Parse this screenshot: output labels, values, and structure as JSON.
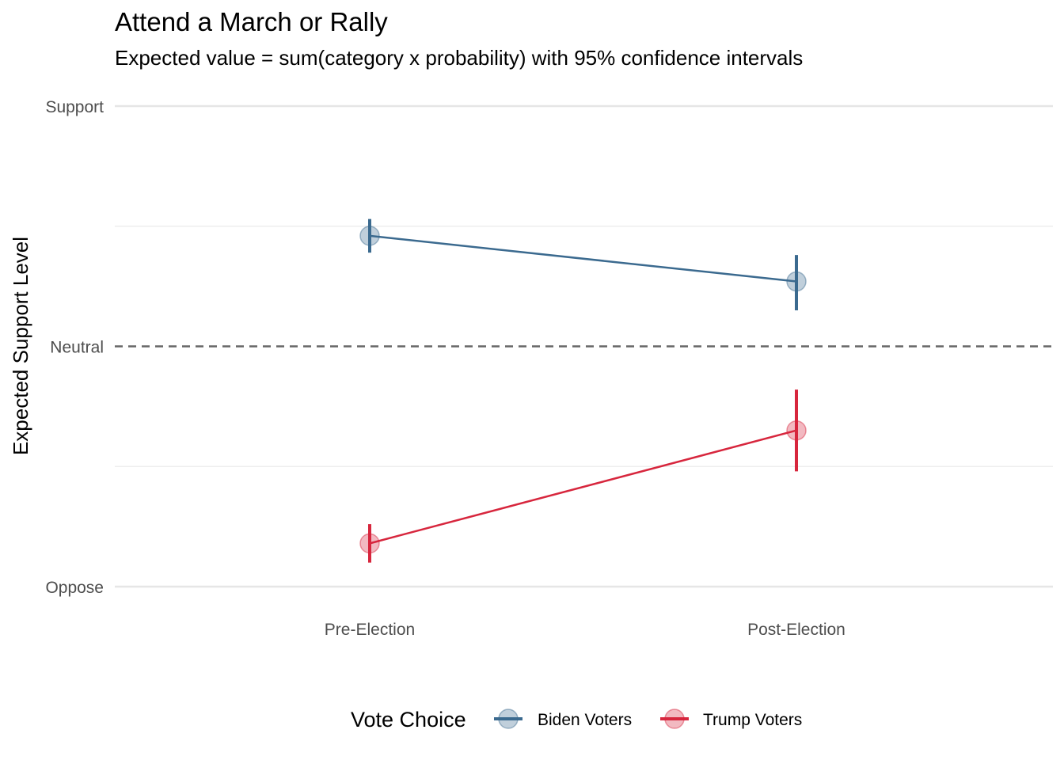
{
  "chart_data": {
    "type": "line",
    "title": "Attend a March or Rally",
    "subtitle": "Expected value = sum(category x probability) with 95% confidence intervals",
    "xlabel": "",
    "ylabel": "Expected Support Level",
    "categories": [
      "Pre-Election",
      "Post-Election"
    ],
    "ylim": [
      1,
      3
    ],
    "y_ticks": [
      {
        "value": 1,
        "label": "Oppose"
      },
      {
        "value": 2,
        "label": "Neutral"
      },
      {
        "value": 3,
        "label": "Support"
      }
    ],
    "y_minor_ticks": [
      1.5,
      2.5
    ],
    "reference_line": {
      "value": 2,
      "style": "dashed",
      "color": "#666666"
    },
    "grid": true,
    "legend": {
      "title": "Vote Choice",
      "position": "bottom"
    },
    "series": [
      {
        "name": "Biden Voters",
        "color": "#3b6a8f",
        "values": [
          2.46,
          2.27
        ],
        "ci_low": [
          2.39,
          2.15
        ],
        "ci_high": [
          2.53,
          2.38
        ]
      },
      {
        "name": "Trump Voters",
        "color": "#d7263d",
        "values": [
          1.18,
          1.65
        ],
        "ci_low": [
          1.1,
          1.48
        ],
        "ci_high": [
          1.26,
          1.82
        ]
      }
    ]
  }
}
